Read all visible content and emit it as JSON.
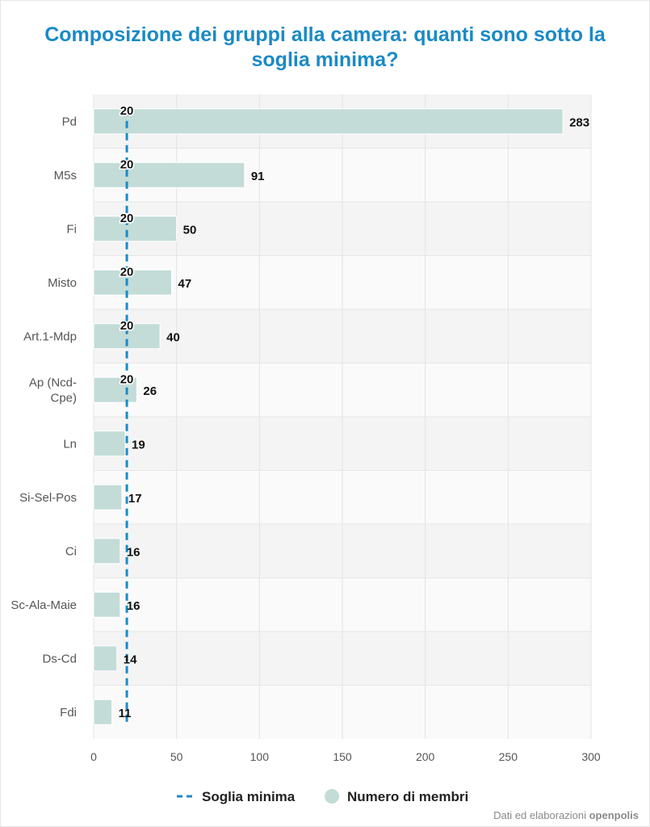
{
  "chart_data": {
    "type": "bar",
    "orientation": "horizontal",
    "title": "Composizione dei gruppi alla camera: quanti sono sotto la soglia minima?",
    "categories": [
      "Pd",
      "M5s",
      "Fi",
      "Misto",
      "Art.1-Mdp",
      "Ap (Ncd-Cpe)",
      "Ln",
      "Si-Sel-Pos",
      "Ci",
      "Sc-Ala-Maie",
      "Ds-Cd",
      "Fdi"
    ],
    "series": [
      {
        "name": "Numero di membri",
        "type": "bar",
        "color": "#c3dcd8",
        "values": [
          283,
          91,
          50,
          47,
          40,
          26,
          19,
          17,
          16,
          16,
          14,
          11
        ]
      },
      {
        "name": "Soglia minima",
        "type": "line",
        "style": "dashed",
        "color": "#1a8ac6",
        "values": [
          20,
          20,
          20,
          20,
          20,
          20,
          20,
          20,
          20,
          20,
          20,
          20
        ],
        "labeled_rows": 6
      }
    ],
    "xlim": [
      0,
      300
    ],
    "xticks": [
      0,
      50,
      100,
      150,
      200,
      250,
      300
    ],
    "grid": true,
    "legend_position": "bottom-center"
  },
  "credit": {
    "prefix": "Dati ed elaborazioni",
    "brand": "openpolis"
  }
}
